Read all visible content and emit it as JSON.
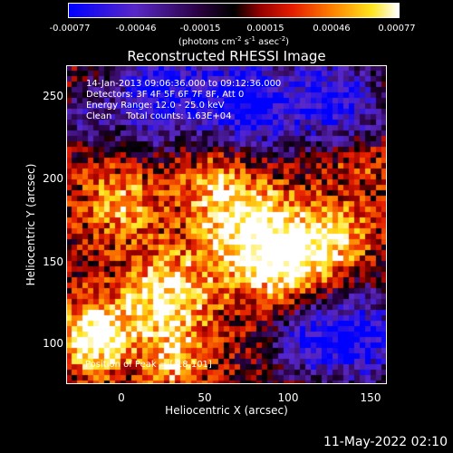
{
  "colorbar": {
    "ticks": [
      "-0.00077",
      "-0.00046",
      "-0.00015",
      "0.00015",
      "0.00046",
      "0.00077"
    ],
    "unit": "(photons cm",
    "unit_exp1": "-2",
    "unit_mid1": " s",
    "unit_exp2": "-1",
    "unit_mid2": " asec",
    "unit_exp3": "-2",
    "unit_end": ")"
  },
  "chart_data": {
    "type": "heatmap",
    "title": "Reconstructed RHESSI Image",
    "xlabel": "Heliocentric X (arcsec)",
    "ylabel": "Heliocentric Y (arcsec)",
    "xlim": [
      -35,
      157
    ],
    "ylim": [
      82,
      272
    ],
    "x_ticks": [
      "0",
      "50",
      "100",
      "150"
    ],
    "y_ticks": [
      "100",
      "150",
      "200",
      "250"
    ],
    "color_range": [
      -0.00077,
      0.00077
    ],
    "colormap": "rainbow-like: blue, purple, black, red, orange, yellow, white",
    "info": [
      "14-Jan-2013 09:06:36.000 to 09:12:36.000",
      "Detectors: 3F 4F 5F 6F 7F 8F, Att 0",
      "Energy Range: 12.0 - 25.0 keV",
      "Clean     Total counts: 1.63E+04"
    ],
    "peak_label": "Position of Peak = [-18,101]",
    "peak": [
      -18,
      101
    ]
  },
  "footer": {
    "timestamp": "11-May-2022 02:10"
  }
}
